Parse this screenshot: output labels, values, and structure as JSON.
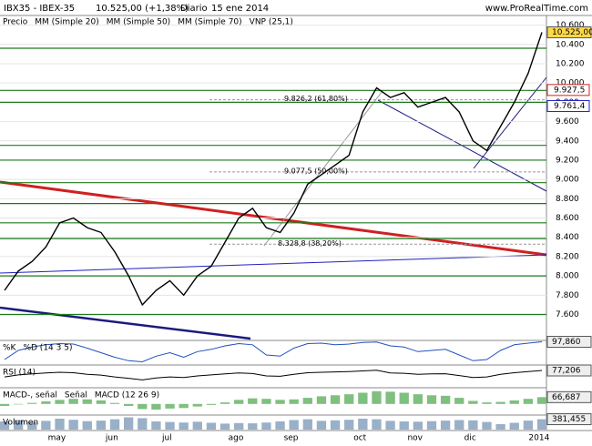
{
  "chart_data": [
    {
      "type": "line",
      "title": "IBX35 - IBEX-35",
      "price": "10.525,00 (+1,38%)",
      "period": "Diario",
      "date": "15 ene 2014",
      "source": "www.ProRealTime.com",
      "legend": [
        {
          "name": "Precio",
          "color": "#000000"
        },
        {
          "name": "MM (Simple 20)",
          "color": "#d02020"
        },
        {
          "name": "MM (Simple 50)",
          "color": "#808080"
        },
        {
          "name": "MM (Simple 70)",
          "color": "#2020c0"
        },
        {
          "name": "VNP (25,1)",
          "color": "#a0a0ff"
        }
      ],
      "categories": [
        null,
        null,
        null,
        "may",
        null,
        null,
        null,
        "jun",
        null,
        null,
        null,
        "jul",
        null,
        null,
        null,
        null,
        "ago",
        null,
        null,
        null,
        "sep",
        null,
        null,
        null,
        null,
        "oct",
        null,
        null,
        null,
        "nov",
        null,
        null,
        null,
        "dic",
        null,
        null,
        null,
        null,
        "2014",
        null
      ],
      "series": [
        {
          "name": "Precio",
          "color": "#000000",
          "values": [
            7850,
            8050,
            8150,
            8300,
            8550,
            8600,
            8500,
            8450,
            8250,
            8000,
            7700,
            7850,
            7950,
            7800,
            8000,
            8100,
            8350,
            8600,
            8700,
            8500,
            8450,
            8650,
            8950,
            9050,
            9150,
            9250,
            9700,
            9950,
            9850,
            9900,
            9750,
            9800,
            9850,
            9700,
            9400,
            9300,
            9550,
            9800,
            10100,
            10525
          ]
        }
      ],
      "levels": [
        10360,
        9923.3,
        9800,
        9353.6,
        9200,
        8966.4,
        8750,
        8550,
        8386.8,
        8000,
        7600
      ],
      "annotations": [
        {
          "value": 9826.2,
          "label": "9.826,2 (61,80%)"
        },
        {
          "value": 9077.5,
          "label": "9.077,5 (50,00%)"
        },
        {
          "value": 8328.8,
          "label": "8.328,8 (38,20%)"
        }
      ],
      "current": {
        "value": 10525,
        "label": "10.525,00"
      },
      "marked_levels": [
        {
          "value": 9927.5,
          "label": "9.927,5",
          "color": "#d02020"
        },
        {
          "value": 9761.4,
          "label": "9.761,4",
          "color": "#2020c0"
        }
      ],
      "ylim": [
        7350,
        10700
      ],
      "yticks": [
        {
          "value": 10600,
          "label": "10.600"
        },
        {
          "value": 10400,
          "label": "10.400"
        },
        {
          "value": 10200,
          "label": "10.200"
        },
        {
          "value": 10000,
          "label": "10.000"
        },
        {
          "value": 9800,
          "label": "9.800"
        },
        {
          "value": 9600,
          "label": "9.600"
        },
        {
          "value": 9400,
          "label": "9.400"
        },
        {
          "value": 9200,
          "label": "9.200"
        },
        {
          "value": 9000,
          "label": "9.000"
        },
        {
          "value": 8800,
          "label": "8.800"
        },
        {
          "value": 8600,
          "label": "8.600"
        },
        {
          "value": 8400,
          "label": "8.400"
        },
        {
          "value": 8200,
          "label": "8.200"
        },
        {
          "value": 8000,
          "label": "8.000"
        },
        {
          "value": 7800,
          "label": "7.800"
        },
        {
          "value": 7600,
          "label": "7.600"
        }
      ],
      "grid": true
    },
    {
      "type": "line",
      "legend": [
        {
          "name": "%K",
          "color": "#000000"
        },
        {
          "name": "%D (14 3 5)",
          "color": "#c03030"
        }
      ],
      "series": [
        {
          "name": "%K",
          "color": "#2050c0",
          "values": [
            20,
            60,
            75,
            85,
            90,
            88,
            70,
            50,
            30,
            15,
            10,
            35,
            50,
            30,
            55,
            65,
            80,
            90,
            85,
            40,
            35,
            70,
            90,
            92,
            85,
            88,
            95,
            97,
            80,
            75,
            55,
            60,
            65,
            40,
            15,
            20,
            60,
            85,
            92,
            97.86
          ]
        }
      ],
      "current": {
        "value": 97.86,
        "label": "97,860"
      },
      "ylim": [
        0,
        100
      ]
    },
    {
      "type": "line",
      "legend": [
        {
          "name": "RSI (14)",
          "color": "#000000"
        }
      ],
      "series": [
        {
          "name": "RSI (14)",
          "color": "#000000",
          "values": [
            45,
            55,
            60,
            65,
            68,
            66,
            58,
            54,
            45,
            38,
            30,
            40,
            45,
            42,
            50,
            55,
            60,
            65,
            62,
            50,
            48,
            58,
            66,
            68,
            70,
            72,
            75,
            78,
            65,
            63,
            58,
            60,
            61,
            52,
            42,
            45,
            58,
            66,
            72,
            77.206
          ]
        }
      ],
      "current": {
        "value": 77.206,
        "label": "77,206"
      },
      "ylim": [
        0,
        100
      ]
    },
    {
      "type": "bar",
      "legend": [
        {
          "name": "MACD-, señal",
          "color": "#2e8b2e"
        },
        {
          "name": "Señal",
          "color": "#c03030"
        },
        {
          "name": "MACD (12 26 9)",
          "color": "#2020c0"
        }
      ],
      "series": [
        {
          "name": "MACD (12 26 9)",
          "color": "#7fbf7f",
          "values": [
            -20,
            -5,
            10,
            25,
            40,
            50,
            45,
            35,
            10,
            -20,
            -50,
            -55,
            -45,
            -40,
            -25,
            -10,
            15,
            40,
            55,
            50,
            40,
            45,
            60,
            75,
            85,
            95,
            110,
            125,
            120,
            110,
            95,
            85,
            80,
            60,
            30,
            15,
            20,
            35,
            50,
            66.687
          ]
        }
      ],
      "current": {
        "value": 66.687,
        "label": "66,687"
      },
      "ylim": [
        -100,
        150
      ]
    },
    {
      "type": "bar",
      "legend": [
        {
          "name": "Volumen",
          "color": "#000000"
        }
      ],
      "series": [
        {
          "name": "Volumen",
          "color": "#9ab0c8",
          "values": [
            300,
            350,
            280,
            320,
            400,
            360,
            310,
            330,
            380,
            450,
            420,
            300,
            280,
            260,
            290,
            250,
            220,
            240,
            230,
            260,
            300,
            350,
            380,
            320,
            340,
            360,
            400,
            380,
            320,
            300,
            290,
            310,
            330,
            350,
            340,
            280,
            200,
            250,
            330,
            381.455
          ]
        }
      ],
      "current": {
        "value": 381.455,
        "label": "381,455"
      },
      "ylim": [
        0,
        500
      ]
    }
  ]
}
